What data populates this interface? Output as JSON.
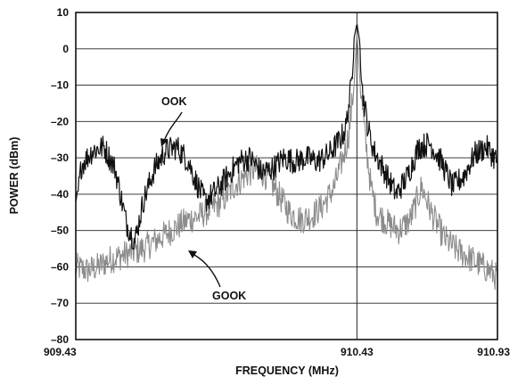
{
  "chart_data": {
    "type": "line",
    "xlabel": "FREQUENCY (MHz)",
    "ylabel": "POWER (dBm)",
    "xlim": [
      909.43,
      910.93
    ],
    "ylim": [
      -80,
      10
    ],
    "x_ticks": [
      "909.43",
      "910.43",
      "910.93"
    ],
    "y_ticks": [
      "10",
      "0",
      "–10",
      "–20",
      "–30",
      "–40",
      "–50",
      "–60",
      "–70",
      "–80"
    ],
    "grid": true,
    "center_line": 910.43,
    "annotations": [
      {
        "text": "OOK",
        "points_to": [
          909.78,
          -28
        ]
      },
      {
        "text": "GOOK",
        "points_to": [
          909.93,
          -56
        ]
      }
    ],
    "series": [
      {
        "name": "OOK",
        "color": "#111111",
        "noise_amplitude_db": 3.5,
        "x": [
          909.43,
          909.45,
          909.49,
          909.53,
          909.57,
          909.61,
          909.64,
          909.67,
          909.71,
          909.75,
          909.79,
          909.83,
          909.86,
          909.89,
          909.93,
          909.97,
          910.01,
          910.05,
          910.09,
          910.13,
          910.17,
          910.21,
          910.25,
          910.29,
          910.33,
          910.37,
          910.39,
          910.41,
          910.42,
          910.43,
          910.44,
          910.45,
          910.47,
          910.49,
          910.53,
          910.57,
          910.61,
          910.65,
          910.69,
          910.73,
          910.77,
          910.81,
          910.85,
          910.89,
          910.93
        ],
        "y": [
          -45,
          -32,
          -28,
          -27,
          -33,
          -48,
          -53,
          -42,
          -33,
          -28,
          -27,
          -31,
          -37,
          -42,
          -39,
          -35,
          -31,
          -30,
          -34,
          -33,
          -30,
          -31,
          -30,
          -31,
          -29,
          -25,
          -22,
          -10,
          3,
          7,
          2,
          -12,
          -22,
          -28,
          -34,
          -40,
          -35,
          -27,
          -26,
          -31,
          -38,
          -35,
          -29,
          -27,
          -31
        ]
      },
      {
        "name": "GOOK",
        "color": "#8c8c8c",
        "noise_amplitude_db": 4,
        "x": [
          909.43,
          909.47,
          909.51,
          909.55,
          909.59,
          909.63,
          909.67,
          909.71,
          909.75,
          909.79,
          909.83,
          909.87,
          909.91,
          909.95,
          909.99,
          910.03,
          910.07,
          910.11,
          910.15,
          910.19,
          910.23,
          910.27,
          910.31,
          910.35,
          910.38,
          910.4,
          910.42,
          910.43,
          910.44,
          910.46,
          910.48,
          910.5,
          910.54,
          910.58,
          910.62,
          910.66,
          910.7,
          910.74,
          910.78,
          910.82,
          910.86,
          910.9,
          910.93
        ],
        "y": [
          -60,
          -61,
          -60,
          -58,
          -57,
          -56,
          -55,
          -53,
          -51,
          -49,
          -47,
          -46,
          -44,
          -42,
          -38,
          -35,
          -33,
          -35,
          -40,
          -45,
          -47,
          -46,
          -43,
          -38,
          -30,
          -24,
          -10,
          5,
          -8,
          -25,
          -38,
          -45,
          -48,
          -50,
          -47,
          -38,
          -46,
          -52,
          -55,
          -57,
          -59,
          -61,
          -63
        ]
      }
    ]
  }
}
